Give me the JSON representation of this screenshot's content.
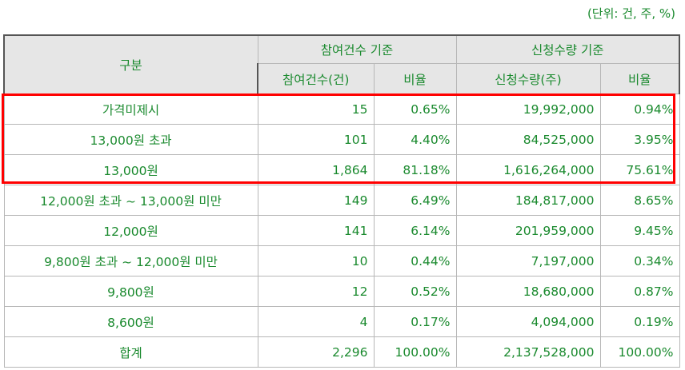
{
  "unit_note": "(단위: 건, 주, %)",
  "header": {
    "category": "구분",
    "group_participation": "참여건수 기준",
    "group_quantity": "신청수량 기준",
    "participation_count": "참여건수(건)",
    "participation_ratio": "비율",
    "quantity": "신청수량(주)",
    "quantity_ratio": "비율"
  },
  "rows": [
    {
      "category": "가격미제시",
      "count": "15",
      "count_ratio": "0.65%",
      "quantity": "19,992,000",
      "quantity_ratio": "0.94%"
    },
    {
      "category": "13,000원 초과",
      "count": "101",
      "count_ratio": "4.40%",
      "quantity": "84,525,000",
      "quantity_ratio": "3.95%"
    },
    {
      "category": "13,000원",
      "count": "1,864",
      "count_ratio": "81.18%",
      "quantity": "1,616,264,000",
      "quantity_ratio": "75.61%"
    },
    {
      "category": "12,000원 초과 ~ 13,000원 미만",
      "count": "149",
      "count_ratio": "6.49%",
      "quantity": "184,817,000",
      "quantity_ratio": "8.65%"
    },
    {
      "category": "12,000원",
      "count": "141",
      "count_ratio": "6.14%",
      "quantity": "201,959,000",
      "quantity_ratio": "9.45%"
    },
    {
      "category": "9,800원 초과 ~ 12,000원 미만",
      "count": "10",
      "count_ratio": "0.44%",
      "quantity": "7,197,000",
      "quantity_ratio": "0.34%"
    },
    {
      "category": "9,800원",
      "count": "12",
      "count_ratio": "0.52%",
      "quantity": "18,680,000",
      "quantity_ratio": "0.87%"
    },
    {
      "category": "8,600원",
      "count": "4",
      "count_ratio": "0.17%",
      "quantity": "4,094,000",
      "quantity_ratio": "0.19%"
    },
    {
      "category": "합계",
      "count": "2,296",
      "count_ratio": "100.00%",
      "quantity": "2,137,528,000",
      "quantity_ratio": "100.00%"
    }
  ],
  "colors": {
    "text": "#1a8a2e",
    "header_bg": "#e6e6e6",
    "highlight": "#ff0000"
  }
}
